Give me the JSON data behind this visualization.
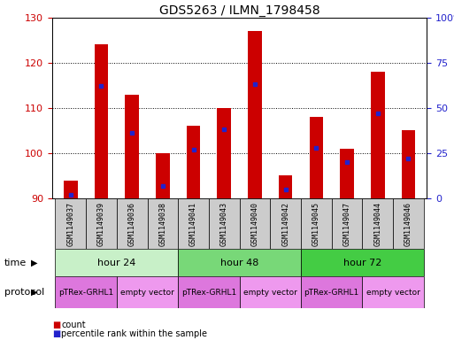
{
  "title": "GDS5263 / ILMN_1798458",
  "samples": [
    "GSM1149037",
    "GSM1149039",
    "GSM1149036",
    "GSM1149038",
    "GSM1149041",
    "GSM1149043",
    "GSM1149040",
    "GSM1149042",
    "GSM1149045",
    "GSM1149047",
    "GSM1149044",
    "GSM1149046"
  ],
  "count_values": [
    94,
    124,
    113,
    100,
    106,
    110,
    127,
    95,
    108,
    101,
    118,
    105
  ],
  "percentile_values": [
    2,
    62,
    36,
    7,
    27,
    38,
    63,
    5,
    28,
    20,
    47,
    22
  ],
  "ymin": 90,
  "ymax": 130,
  "yticks": [
    90,
    100,
    110,
    120,
    130
  ],
  "y2min": 0,
  "y2max": 100,
  "y2ticks": [
    0,
    25,
    50,
    75,
    100
  ],
  "time_groups": [
    {
      "label": "hour 24",
      "start": 0,
      "end": 3,
      "color": "#c8f0c8"
    },
    {
      "label": "hour 48",
      "start": 4,
      "end": 7,
      "color": "#78d878"
    },
    {
      "label": "hour 72",
      "start": 8,
      "end": 11,
      "color": "#44cc44"
    }
  ],
  "protocol_groups": [
    {
      "label": "pTRex-GRHL1",
      "start": 0,
      "end": 1,
      "color": "#dd77dd"
    },
    {
      "label": "empty vector",
      "start": 2,
      "end": 3,
      "color": "#ee99ee"
    },
    {
      "label": "pTRex-GRHL1",
      "start": 4,
      "end": 5,
      "color": "#dd77dd"
    },
    {
      "label": "empty vector",
      "start": 6,
      "end": 7,
      "color": "#ee99ee"
    },
    {
      "label": "pTRex-GRHL1",
      "start": 8,
      "end": 9,
      "color": "#dd77dd"
    },
    {
      "label": "empty vector",
      "start": 10,
      "end": 11,
      "color": "#ee99ee"
    }
  ],
  "bar_color": "#cc0000",
  "marker_color": "#2222cc",
  "bar_width": 0.45,
  "background_color": "#ffffff",
  "ylabel_color": "#cc0000",
  "y2label_color": "#2222cc",
  "title_fontsize": 10,
  "sample_fontsize": 6,
  "tick_fontsize": 8,
  "row_fontsize": 8,
  "proto_fontsize": 6.5
}
